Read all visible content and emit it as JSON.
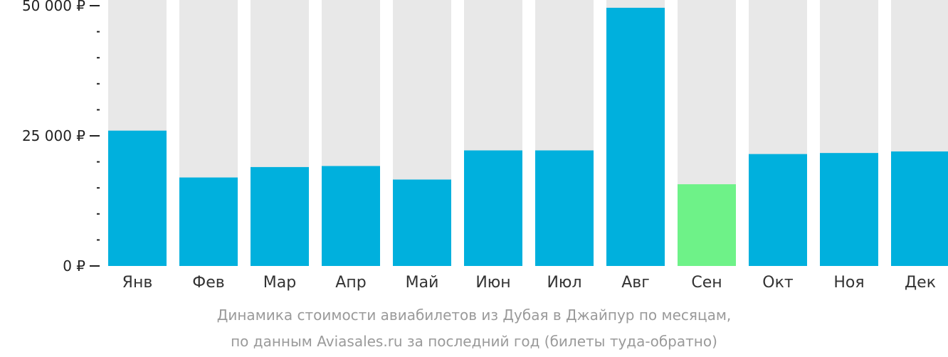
{
  "chart_data": {
    "type": "bar",
    "categories": [
      "Янв",
      "Фев",
      "Мар",
      "Апр",
      "Май",
      "Июн",
      "Июл",
      "Авг",
      "Сен",
      "Окт",
      "Ноя",
      "Дек"
    ],
    "values": [
      26000,
      17000,
      19000,
      19200,
      16600,
      22200,
      22200,
      49600,
      15700,
      21500,
      21700,
      22000
    ],
    "ylim": [
      0,
      50000
    ],
    "y_ticks": [
      {
        "value": 0,
        "label": "0 ₽"
      },
      {
        "value": 25000,
        "label": "25 000 ₽"
      },
      {
        "value": 50000,
        "label": "50 000 ₽"
      }
    ],
    "y_minor_step": 5000,
    "highlight_category": "Сен",
    "colors": {
      "bar": "#00b0dd",
      "highlight": "#6ef288",
      "track": "#e8e8e8",
      "axis": "#222222"
    },
    "caption": [
      "Динамика стоимости авиабилетов из Дубая в Джайпур по месяцам,",
      "по данным Aviasales.ru за последний год (билеты туда-обратно)"
    ],
    "xlabel": "",
    "ylabel": ""
  }
}
